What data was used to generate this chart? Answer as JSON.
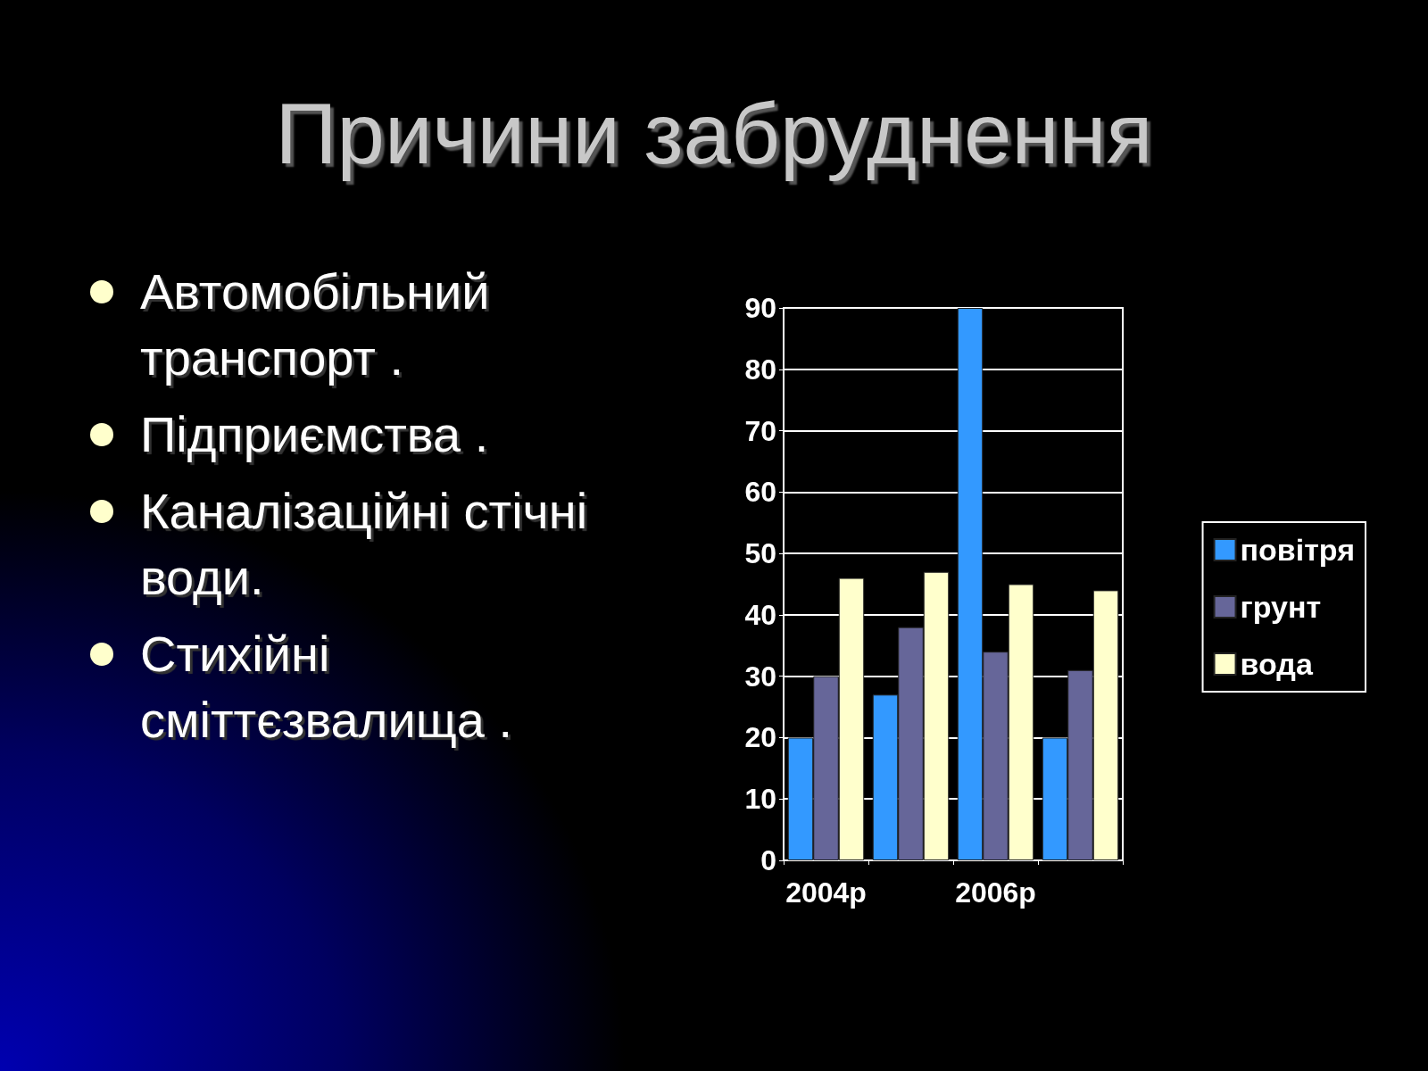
{
  "chart_data": {
    "type": "bar",
    "title": "Причини забруднення",
    "annotations": [
      "Автомобільний транспорт .",
      "Підприємства .",
      "Каналізаційні стічні води.",
      "Стихійні сміттєзвалища ."
    ],
    "categories": [
      "2004р",
      null,
      "2006р",
      null
    ],
    "series": [
      {
        "name": "повітря",
        "color": "#3399ff",
        "values": [
          20,
          27,
          90,
          20
        ]
      },
      {
        "name": "грунт",
        "color": "#666699",
        "values": [
          30,
          38,
          34,
          31
        ]
      },
      {
        "name": "вода",
        "color": "#ffffcc",
        "values": [
          46,
          47,
          45,
          44
        ]
      }
    ],
    "ylim": [
      0,
      90
    ],
    "yticks": [
      0,
      10,
      20,
      30,
      40,
      50,
      60,
      70,
      80,
      90
    ],
    "grid": "y",
    "legend": "right"
  }
}
